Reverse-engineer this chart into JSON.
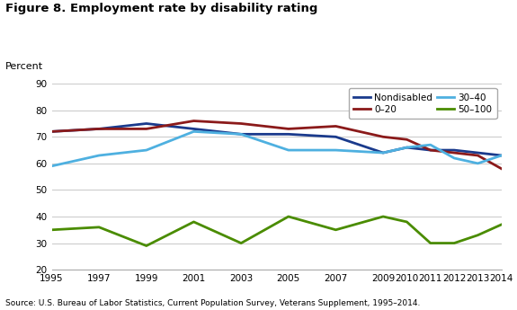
{
  "title": "Figure 8. Employment rate by disability rating",
  "ylabel": "Percent",
  "source": "Source: U.S. Bureau of Labor Statistics, Current Population Survey, Veterans Supplement, 1995–2014.",
  "ylim": [
    20,
    90
  ],
  "yticks": [
    20,
    30,
    40,
    50,
    60,
    70,
    80,
    90
  ],
  "xticks": [
    1995,
    1997,
    1999,
    2001,
    2003,
    2005,
    2007,
    2009,
    2010,
    2011,
    2012,
    2013,
    2014
  ],
  "series": {
    "Nondisabled": {
      "color": "#1a3a8c",
      "linewidth": 2.0,
      "x": [
        1995,
        1997,
        1999,
        2001,
        2003,
        2005,
        2007,
        2009,
        2010,
        2011,
        2012,
        2013,
        2014
      ],
      "y": [
        72,
        73,
        75,
        73,
        71,
        71,
        70,
        64,
        66,
        65,
        65,
        64,
        63
      ]
    },
    "0–20": {
      "color": "#8b1a1a",
      "linewidth": 2.0,
      "x": [
        1995,
        1997,
        1999,
        2001,
        2003,
        2005,
        2007,
        2009,
        2010,
        2011,
        2012,
        2013,
        2014
      ],
      "y": [
        72,
        73,
        73,
        76,
        75,
        73,
        74,
        70,
        69,
        65,
        64,
        63,
        58
      ]
    },
    "30–40": {
      "color": "#4eb0e0",
      "linewidth": 2.0,
      "x": [
        1995,
        1997,
        1999,
        2001,
        2003,
        2005,
        2007,
        2009,
        2010,
        2011,
        2012,
        2013,
        2014
      ],
      "y": [
        59,
        63,
        65,
        72,
        71,
        65,
        65,
        64,
        66,
        67,
        62,
        60,
        63
      ]
    },
    "50–100": {
      "color": "#4a8c00",
      "linewidth": 2.0,
      "x": [
        1995,
        1997,
        1999,
        2001,
        2003,
        2005,
        2007,
        2009,
        2010,
        2011,
        2012,
        2013,
        2014
      ],
      "y": [
        35,
        36,
        29,
        38,
        30,
        40,
        35,
        40,
        38,
        30,
        30,
        33,
        37
      ]
    }
  },
  "background_color": "#ffffff",
  "plot_bg_color": "#ffffff",
  "grid_color": "#cccccc"
}
